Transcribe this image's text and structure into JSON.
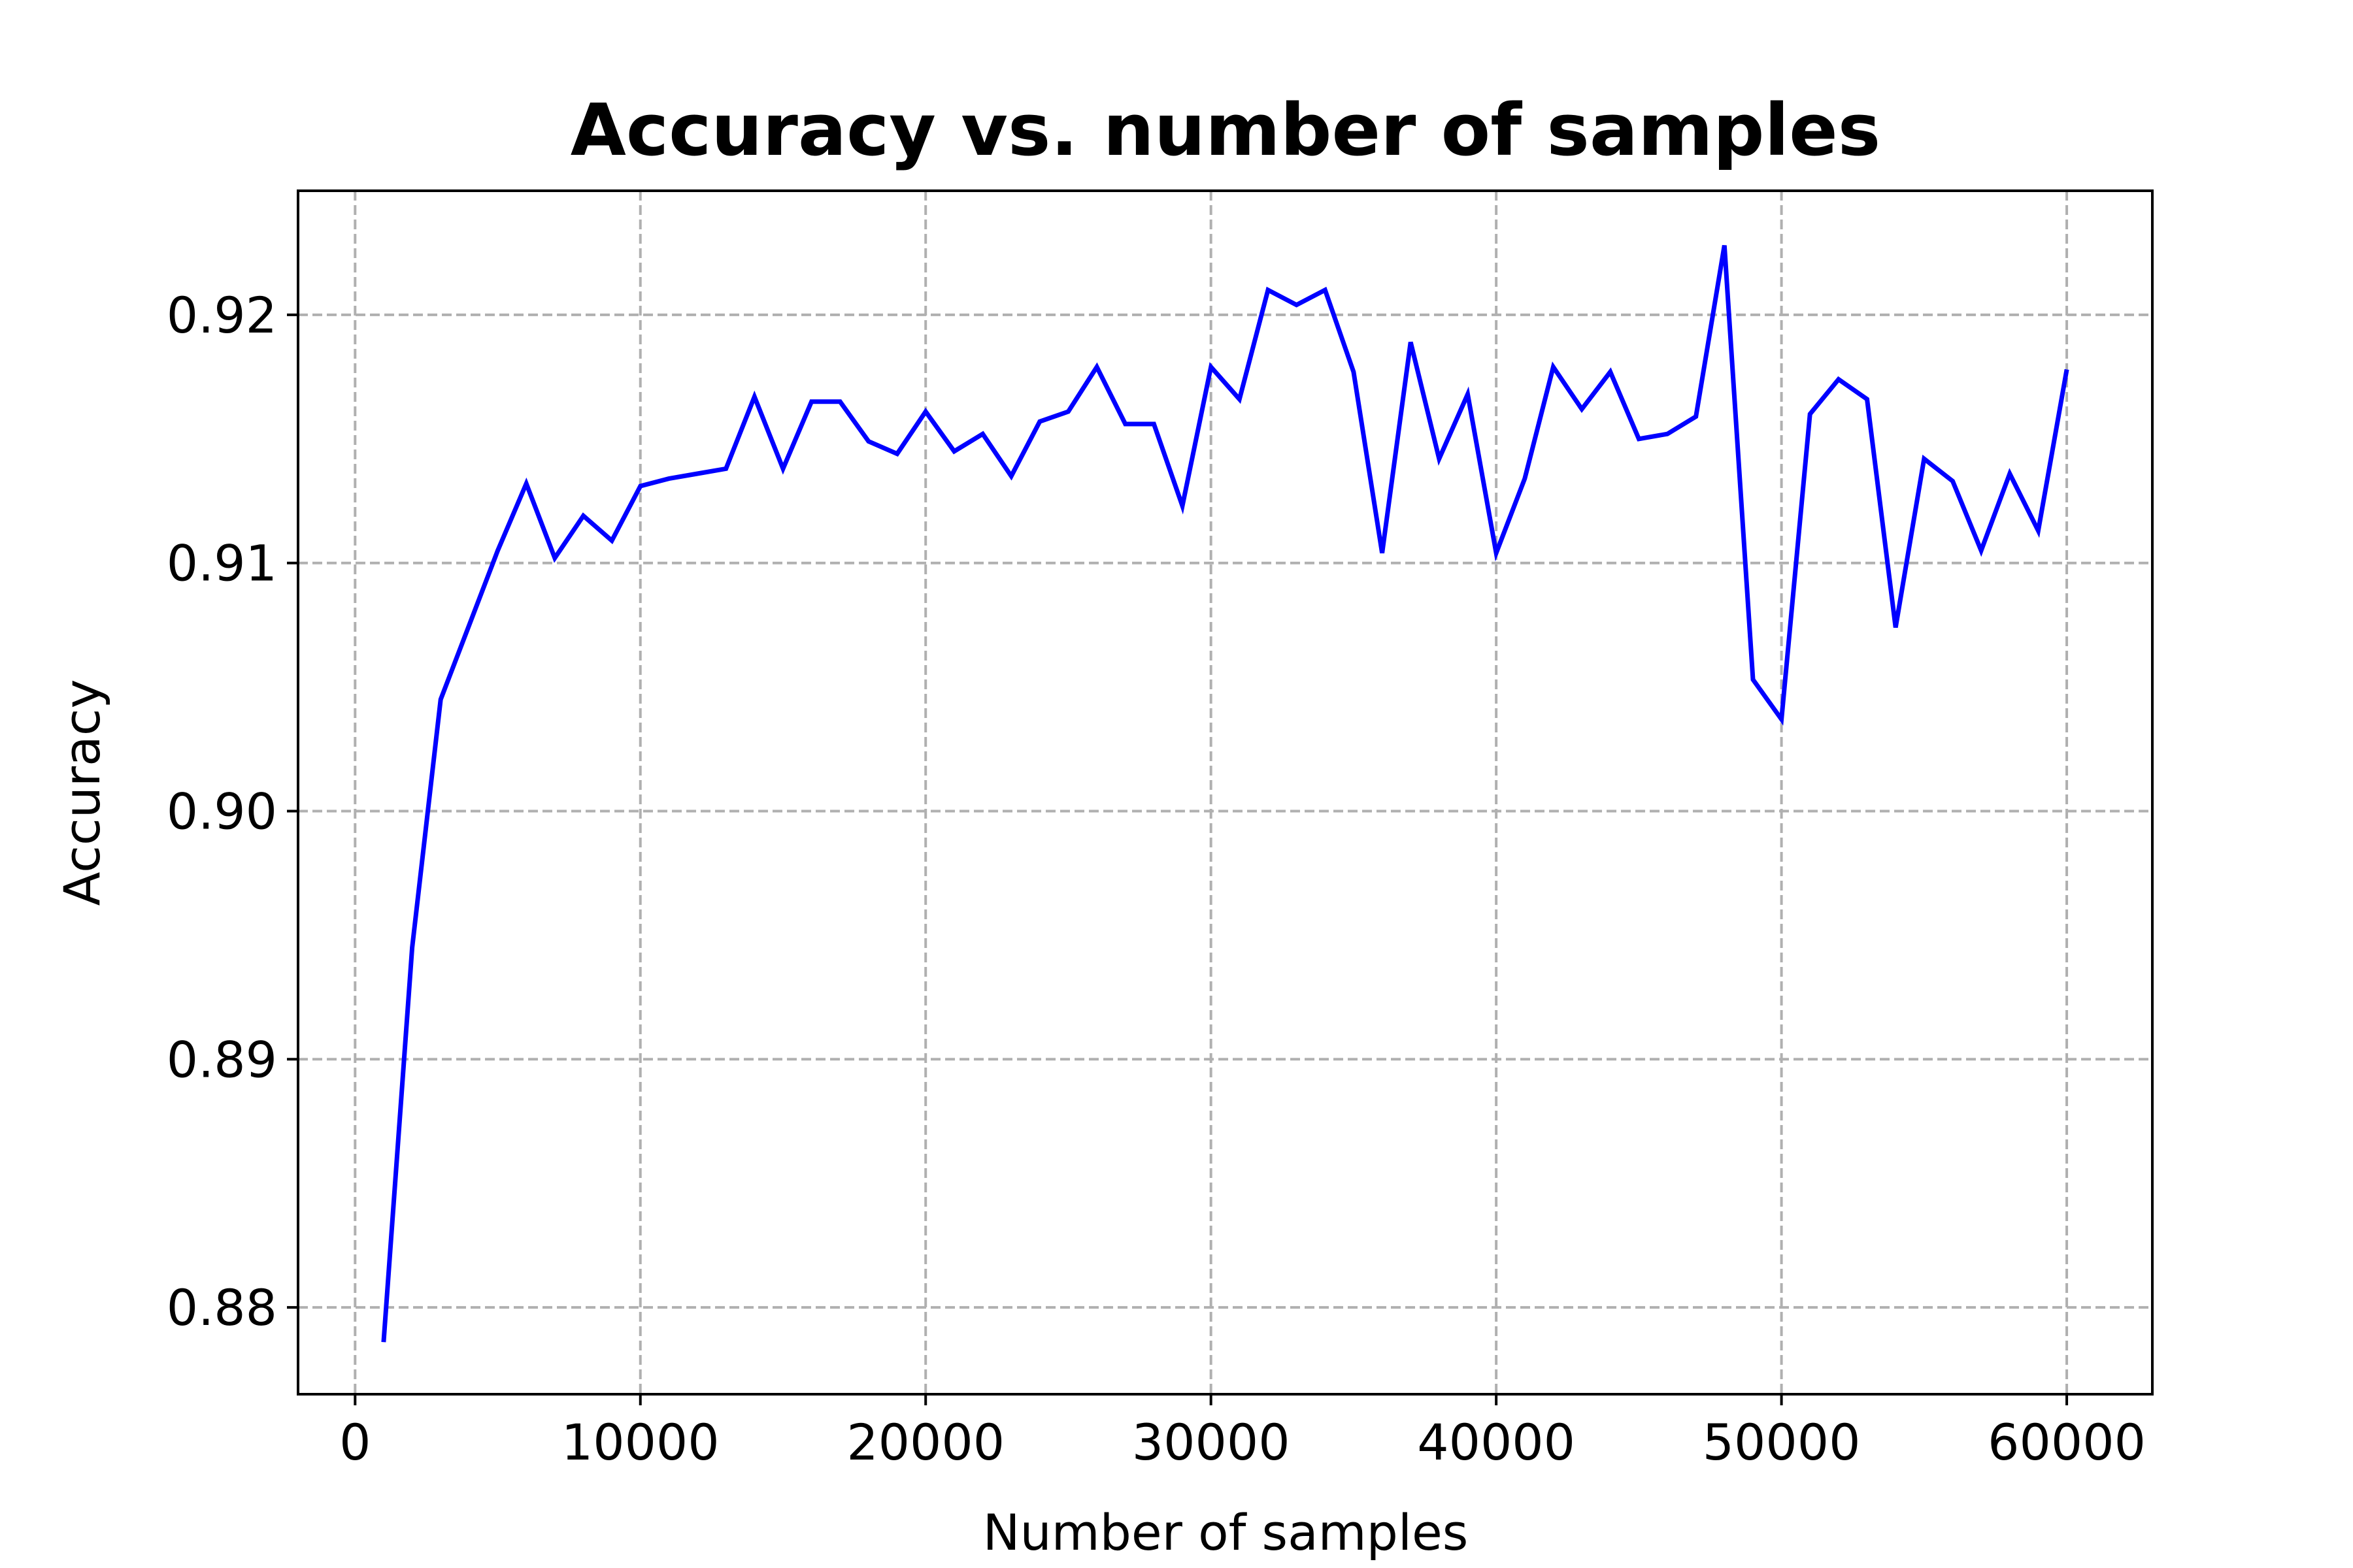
{
  "chart_data": {
    "type": "line",
    "title": "Accuracy vs. number of samples",
    "xlabel": "Number of samples",
    "ylabel": "Accuracy",
    "xlim": [
      -2000,
      63000
    ],
    "ylim": [
      0.8765,
      0.925
    ],
    "xticks": [
      0,
      10000,
      20000,
      30000,
      40000,
      50000,
      60000
    ],
    "xtick_labels": [
      "0",
      "10000",
      "20000",
      "30000",
      "40000",
      "50000",
      "60000"
    ],
    "yticks": [
      0.88,
      0.89,
      0.9,
      0.91,
      0.92
    ],
    "ytick_labels": [
      "0.88",
      "0.89",
      "0.90",
      "0.91",
      "0.92"
    ],
    "grid": true,
    "line_color": "#0000ff",
    "grid_color": "#b0b0b0",
    "series": [
      {
        "x": [
          1000,
          2000,
          3000,
          4000,
          5000,
          6000,
          7000,
          8000,
          9000,
          10000,
          11000,
          12000,
          13000,
          14000,
          15000,
          16000,
          17000,
          18000,
          19000,
          20000,
          21000,
          22000,
          23000,
          24000,
          25000,
          26000,
          27000,
          28000,
          29000,
          30000,
          31000,
          32000,
          33000,
          34000,
          35000,
          36000,
          37000,
          38000,
          39000,
          40000,
          41000,
          42000,
          43000,
          44000,
          45000,
          46000,
          47000,
          48000,
          49000,
          50000,
          51000,
          52000,
          53000,
          54000,
          55000,
          56000,
          57000,
          58000,
          59000,
          60000
        ],
        "y": [
          0.8786,
          0.8945,
          0.9045,
          0.9075,
          0.9105,
          0.9132,
          0.9102,
          0.9119,
          0.9109,
          0.9131,
          0.9134,
          0.9136,
          0.9138,
          0.9167,
          0.9138,
          0.9165,
          0.9165,
          0.9149,
          0.9144,
          0.9161,
          0.9145,
          0.9152,
          0.9135,
          0.9157,
          0.9161,
          0.9179,
          0.9156,
          0.9156,
          0.9123,
          0.9179,
          0.9166,
          0.921,
          0.9204,
          0.921,
          0.9177,
          0.9104,
          0.9189,
          0.9142,
          0.9168,
          0.9104,
          0.9134,
          0.9179,
          0.9162,
          0.9177,
          0.915,
          0.9152,
          0.9159,
          0.9228,
          0.9053,
          0.9037,
          0.916,
          0.9174,
          0.9166,
          0.9074,
          0.9142,
          0.9133,
          0.9105,
          0.9136,
          0.9113,
          0.9178
        ]
      }
    ]
  }
}
